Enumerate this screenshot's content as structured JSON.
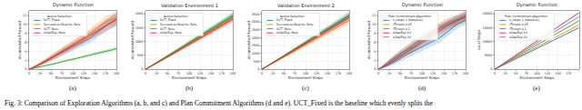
{
  "caption": "Fig. 3: Comparison of Exploration Algorithms (a, b, and c) and Plan Commitment Algorithms (d and e). UCT_Fixed is the baseline which evenly splits the",
  "chart_data": [
    {
      "type": "line",
      "title": "Dynamic Function",
      "annotations": [
        "(a)"
      ],
      "x_label": "Environment Steps",
      "y_label": "Accumulated Reward",
      "legend_title": "Action Selection",
      "legend": "upper left",
      "grid": true,
      "x": [
        0,
        20,
        40,
        60,
        80,
        100,
        120,
        140,
        160,
        180,
        200
      ],
      "xlim": [
        0,
        200
      ],
      "xticks": [
        0,
        25,
        50,
        75,
        100,
        125,
        150,
        175,
        200
      ],
      "ylim": [
        0,
        13
      ],
      "yticks": [
        0,
        2,
        4,
        6,
        8,
        10,
        12
      ],
      "series": [
        {
          "name": "UCT, Fixed",
          "color": "#1f77b4",
          "values": [
            0,
            0.8,
            1.8,
            3,
            4,
            5,
            6,
            7,
            8.5,
            10,
            11
          ],
          "error": [
            0,
            0.3,
            0.5,
            0.7,
            0.8,
            0.9,
            1,
            1.1,
            1.2,
            1.3,
            1.4
          ]
        },
        {
          "name": "Successive Rejects, Relu",
          "color": "#ff7f0e",
          "values": [
            0,
            1,
            2,
            3.2,
            4.3,
            5.5,
            6.8,
            8,
            9.5,
            10.8,
            11.5
          ],
          "error": [
            0,
            0.3,
            0.5,
            0.7,
            0.8,
            0.9,
            1,
            1.1,
            1.2,
            1.3,
            1.4
          ]
        },
        {
          "name": "UCT, Relu",
          "color": "#2ca02c",
          "values": [
            0,
            0.4,
            0.9,
            1.3,
            1.8,
            2.2,
            2.7,
            3.2,
            3.6,
            4.1,
            4.6
          ],
          "error": [
            0,
            0.1,
            0.15,
            0.2,
            0.25,
            0.3,
            0.3,
            0.35,
            0.35,
            0.4,
            0.4
          ]
        },
        {
          "name": "sGapExp, Relu",
          "color": "#d62728",
          "values": [
            0,
            0.9,
            2,
            3,
            4.2,
            5.3,
            6.5,
            7.6,
            8.8,
            10,
            11.2
          ],
          "error": [
            0,
            0.3,
            0.5,
            0.7,
            0.8,
            0.9,
            1,
            1.1,
            1.2,
            1.3,
            1.4
          ]
        }
      ]
    },
    {
      "type": "line",
      "title": "Validation Environment 1",
      "annotations": [
        "(b)"
      ],
      "x_label": "Environment Steps",
      "y_label": "Accumulated Reward",
      "legend_title": "Action Selection",
      "legend": "upper left",
      "grid": true,
      "x": [
        0,
        20,
        40,
        60,
        80,
        100,
        120,
        140,
        160,
        180,
        200
      ],
      "xlim": [
        0,
        200
      ],
      "xticks": [
        0,
        25,
        50,
        75,
        100,
        125,
        150,
        175,
        200
      ],
      "ylim": [
        0,
        2100
      ],
      "yticks": [
        0,
        500,
        1000,
        1500,
        2000
      ],
      "series": [
        {
          "name": "UCT, Fixed",
          "color": "#1f77b4",
          "values": [
            0,
            180,
            370,
            560,
            750,
            940,
            1130,
            1320,
            1510,
            1700,
            1900
          ],
          "error": [
            0,
            20,
            40,
            50,
            60,
            70,
            80,
            90,
            100,
            110,
            120
          ]
        },
        {
          "name": "Successive Rejects, Relu",
          "color": "#ff7f0e",
          "values": [
            0,
            175,
            360,
            545,
            735,
            920,
            1110,
            1290,
            1480,
            1660,
            1850
          ],
          "error": [
            0,
            20,
            40,
            50,
            60,
            70,
            80,
            90,
            100,
            110,
            120
          ]
        },
        {
          "name": "UCT, Relu",
          "color": "#2ca02c",
          "values": [
            0,
            190,
            385,
            580,
            780,
            970,
            1170,
            1360,
            1560,
            1750,
            1950
          ],
          "error": [
            0,
            20,
            40,
            50,
            60,
            70,
            80,
            90,
            100,
            110,
            120
          ]
        },
        {
          "name": "sGapExp, Relu",
          "color": "#d62728",
          "values": [
            0,
            170,
            350,
            530,
            710,
            890,
            1075,
            1250,
            1430,
            1610,
            1800
          ],
          "error": [
            0,
            20,
            40,
            50,
            60,
            70,
            80,
            90,
            100,
            110,
            120
          ]
        }
      ]
    },
    {
      "type": "line",
      "title": "Validation Environment 2",
      "annotations": [
        "(c)"
      ],
      "x_label": "Environment Steps",
      "y_label": "Accumulated Reward",
      "legend_title": "Action Selection",
      "legend": "upper left",
      "grid": true,
      "x": [
        0,
        20,
        40,
        60,
        80,
        100,
        120,
        140,
        160,
        180,
        200
      ],
      "xlim": [
        0,
        200
      ],
      "xticks": [
        0,
        25,
        50,
        75,
        100,
        125,
        150,
        175,
        200
      ],
      "ylim": [
        0,
        3700
      ],
      "yticks": [
        0,
        500,
        1000,
        1500,
        2000,
        2500,
        3000,
        3500
      ],
      "series": [
        {
          "name": "UCT, Fixed",
          "color": "#1f77b4",
          "values": [
            0,
            330,
            670,
            1000,
            1340,
            1680,
            2010,
            2350,
            2690,
            3030,
            3380
          ],
          "error": [
            0,
            30,
            60,
            90,
            110,
            130,
            150,
            170,
            190,
            210,
            230
          ]
        },
        {
          "name": "Successive Rejects, Relu",
          "color": "#ff7f0e",
          "values": [
            0,
            300,
            610,
            920,
            1230,
            1540,
            1850,
            2160,
            2470,
            2780,
            3100
          ],
          "error": [
            0,
            30,
            60,
            90,
            110,
            130,
            150,
            170,
            190,
            210,
            230
          ]
        },
        {
          "name": "UCT, Relu",
          "color": "#2ca02c",
          "values": [
            0,
            340,
            690,
            1030,
            1380,
            1720,
            2070,
            2410,
            2760,
            3100,
            3450
          ],
          "error": [
            0,
            30,
            60,
            90,
            110,
            130,
            150,
            170,
            190,
            210,
            230
          ]
        },
        {
          "name": "sGapExp, Relu",
          "color": "#d62728",
          "values": [
            0,
            320,
            650,
            980,
            1300,
            1630,
            1960,
            2290,
            2620,
            2950,
            3280
          ],
          "error": [
            0,
            30,
            60,
            90,
            110,
            130,
            150,
            170,
            190,
            210,
            230
          ]
        }
      ]
    },
    {
      "type": "line",
      "title": "Dynamic Function",
      "annotations": [
        "(d)"
      ],
      "x_label": "Environment Steps",
      "y_label": "Accumulated Reward",
      "legend_title": "Plan Commitment Algorithm",
      "legend": "upper left",
      "grid": true,
      "x": [
        0,
        20,
        40,
        60,
        80,
        100,
        120,
        140,
        160,
        180,
        200
      ],
      "xlim": [
        0,
        200
      ],
      "xticks": [
        0,
        25,
        50,
        75,
        100,
        125,
        150,
        175,
        200
      ],
      "ylim": [
        0,
        13
      ],
      "yticks": [
        0,
        2,
        4,
        6,
        8,
        10,
        12
      ],
      "series": [
        {
          "name": "n_steps 1 (baseline)",
          "color": "#1f77b4",
          "values": [
            0,
            0.8,
            1.8,
            3,
            4,
            5,
            6,
            7,
            8.5,
            10,
            11
          ],
          "error": [
            0,
            0.4,
            0.6,
            0.8,
            0.9,
            1,
            1,
            1,
            1,
            1,
            1
          ]
        },
        {
          "name": "rThresh 0.05",
          "color": "#ff7f0e",
          "values": [
            0,
            1.5,
            3,
            4,
            5.5,
            7,
            8,
            9.5,
            10.5,
            11,
            12
          ],
          "error": [
            0,
            0.4,
            0.6,
            0.8,
            0.9,
            1,
            1,
            1,
            1,
            1,
            1
          ]
        },
        {
          "name": "rThresh 0.1",
          "color": "#2ca02c",
          "values": [
            0,
            1.2,
            2.5,
            4,
            5,
            6.5,
            7.5,
            9,
            10,
            11,
            11.5
          ],
          "error": [
            0,
            0.4,
            0.6,
            0.8,
            0.9,
            1,
            1,
            1,
            1,
            1,
            1
          ]
        },
        {
          "name": "sGapExp 10",
          "color": "#d62728",
          "values": [
            0,
            1,
            2.2,
            3.5,
            4.8,
            6,
            7.2,
            8.5,
            9.8,
            10.8,
            11.8
          ],
          "error": [
            0,
            0.4,
            0.6,
            0.8,
            0.9,
            1,
            1,
            1,
            1,
            1,
            1
          ]
        },
        {
          "name": "sGapExp 20",
          "color": "#9467bd",
          "values": [
            0,
            1.3,
            2.8,
            4.2,
            5.5,
            6.8,
            8,
            9.2,
            10.3,
            11.2,
            12.2
          ],
          "error": [
            0,
            0.4,
            0.6,
            0.8,
            0.9,
            1,
            1,
            1,
            1,
            1,
            1
          ]
        }
      ]
    },
    {
      "type": "line",
      "title": "Dynamic Function",
      "annotations": [
        "(e)"
      ],
      "x_label": "Environment Steps",
      "y_label": "Local Steps",
      "legend_title": "Plan Commitment Algorithm",
      "legend": "upper left",
      "grid": true,
      "x": [
        0,
        20,
        40,
        60,
        80,
        100,
        120,
        140,
        160,
        180,
        200
      ],
      "xlim": [
        0,
        200
      ],
      "xticks": [
        0,
        25,
        50,
        75,
        100,
        125,
        150,
        175,
        200
      ],
      "ylim": [
        0,
        21000
      ],
      "yticks": [
        0,
        5000,
        10000,
        15000,
        20000
      ],
      "series": [
        {
          "name": "n_steps 1 (baseline)",
          "color": "#1f77b4",
          "values": [
            0,
            1500,
            3000,
            4500,
            6000,
            7500,
            9000,
            10500,
            12000,
            13500,
            15000
          ]
        },
        {
          "name": "rThresh 0.05",
          "color": "#ff7f0e",
          "values": [
            0,
            1600,
            3200,
            4800,
            6400,
            8000,
            9600,
            11200,
            12800,
            14400,
            16000
          ]
        },
        {
          "name": "rThresh 0.1",
          "color": "#2ca02c",
          "values": [
            0,
            1750,
            3500,
            5250,
            7000,
            8750,
            10500,
            12250,
            14000,
            15750,
            17500
          ]
        },
        {
          "name": "sGapExp 10",
          "color": "#d62728",
          "values": [
            0,
            2040,
            4080,
            6120,
            8160,
            10200,
            12240,
            14280,
            16320,
            18360,
            20400
          ]
        },
        {
          "name": "sGapExp 20",
          "color": "#9467bd",
          "values": [
            0,
            1900,
            3800,
            5700,
            7600,
            9500,
            11400,
            13300,
            15200,
            17100,
            19000
          ]
        }
      ]
    }
  ]
}
